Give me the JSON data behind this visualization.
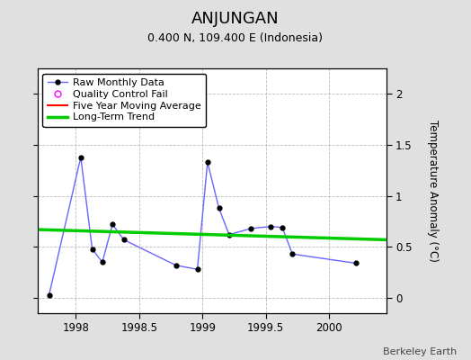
{
  "title": "ANJUNGAN",
  "subtitle": "0.400 N, 109.400 E (Indonesia)",
  "ylabel": "Temperature Anomaly (°C)",
  "credit": "Berkeley Earth",
  "xlim": [
    1997.7,
    2000.45
  ],
  "ylim": [
    -0.15,
    2.25
  ],
  "yticks": [
    0,
    0.5,
    1,
    1.5,
    2
  ],
  "xticks": [
    1998,
    1998.5,
    1999,
    1999.5,
    2000
  ],
  "raw_x": [
    1997.79,
    1998.04,
    1998.13,
    1998.21,
    1998.29,
    1998.38,
    1998.79,
    1998.96,
    1999.04,
    1999.13,
    1999.21,
    1999.38,
    1999.54,
    1999.63,
    1999.71,
    2000.21
  ],
  "raw_y": [
    0.03,
    1.38,
    0.48,
    0.35,
    0.72,
    0.57,
    0.32,
    0.28,
    1.33,
    0.88,
    0.62,
    0.68,
    0.7,
    0.69,
    0.43,
    0.34
  ],
  "trend_x": [
    1997.7,
    2000.45
  ],
  "trend_y": [
    0.67,
    0.57
  ],
  "line_color": "#6666ff",
  "marker_color": "#000000",
  "trend_color": "#00cc00",
  "moving_avg_color": "#ff0000",
  "qc_color": "#ff00ff",
  "bg_color": "#e0e0e0",
  "plot_bg_color": "#ffffff",
  "grid_color": "#bbbbbb",
  "title_fontsize": 13,
  "subtitle_fontsize": 9,
  "tick_fontsize": 8.5,
  "ylabel_fontsize": 8.5,
  "legend_fontsize": 8,
  "credit_fontsize": 8
}
